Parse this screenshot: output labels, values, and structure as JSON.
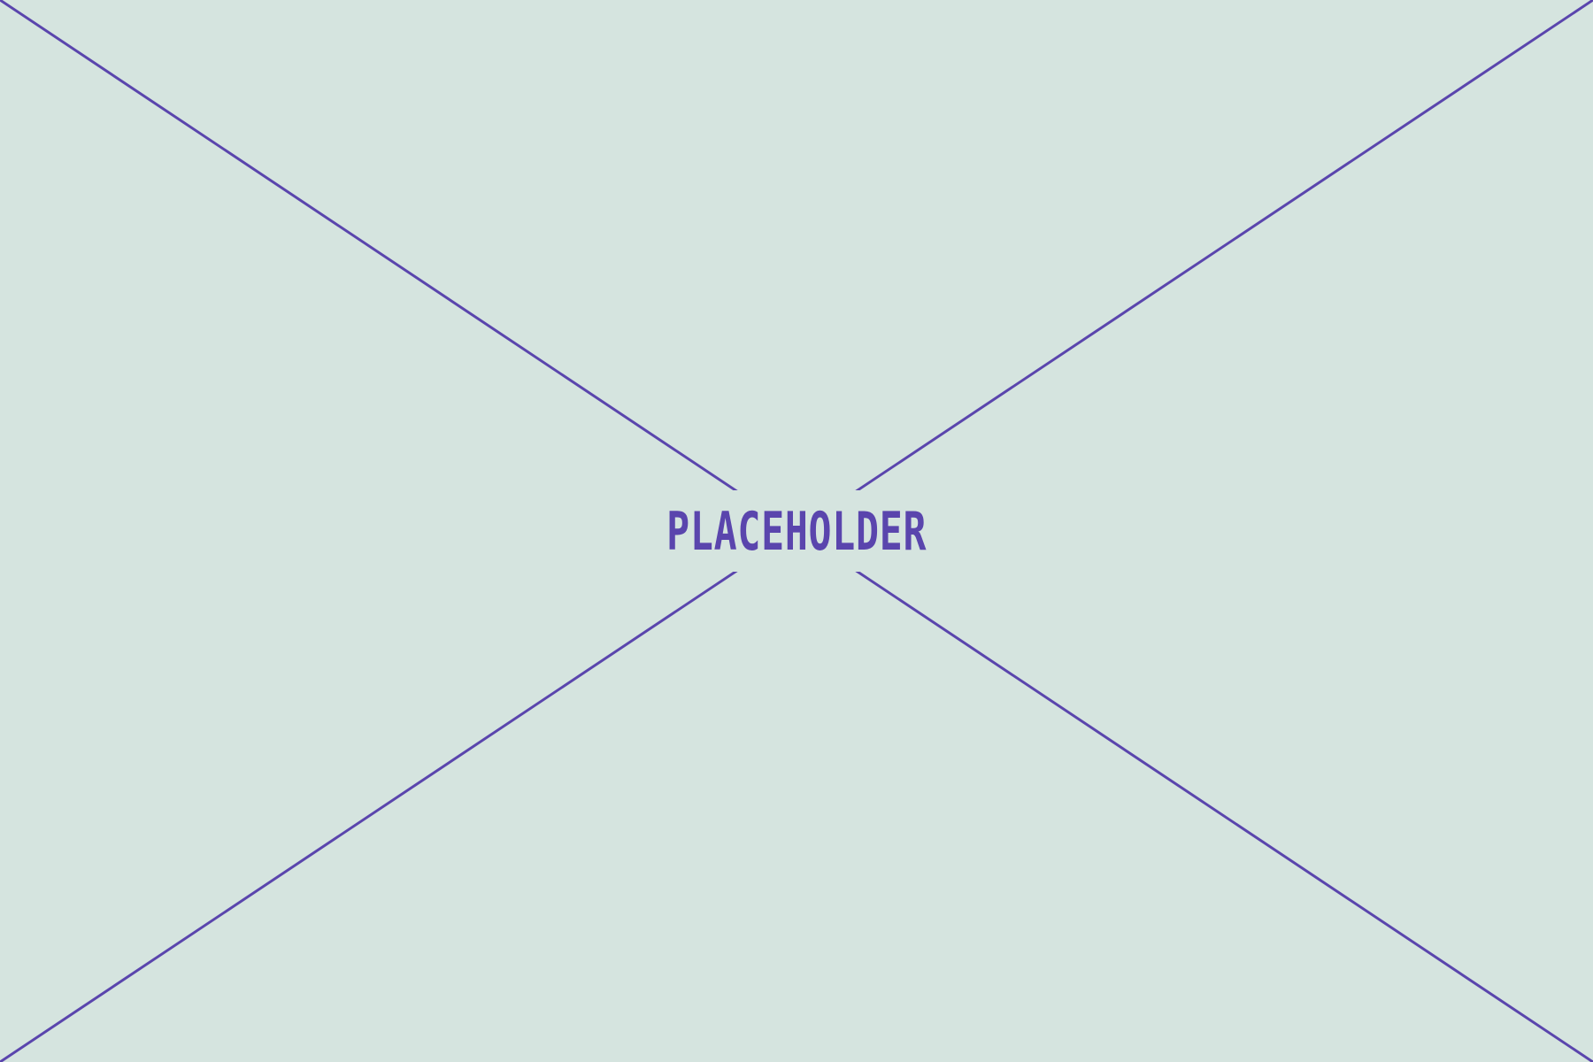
{
  "placeholder": {
    "label": "PLACEHOLDER",
    "background_color": "#d5e4df",
    "accent_color": "#5a45ad"
  }
}
